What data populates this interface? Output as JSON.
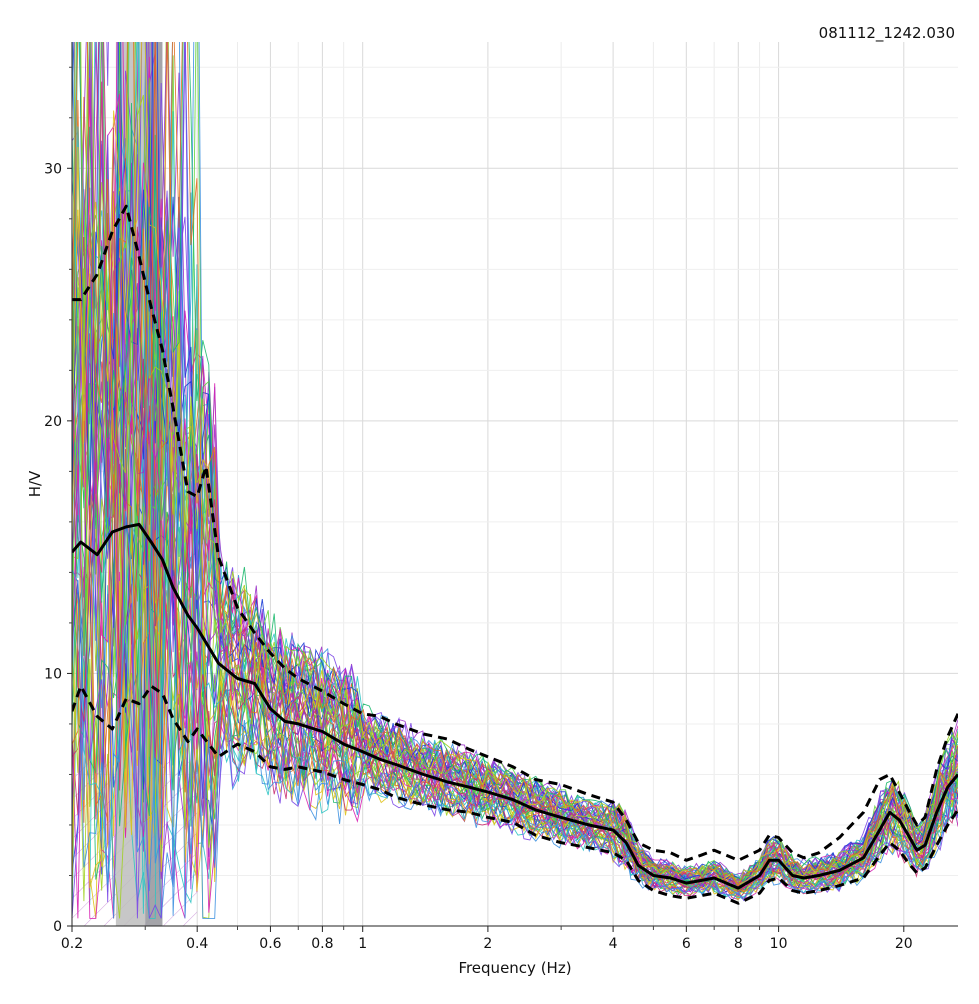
{
  "corner_id": "081112_1242.030",
  "chart_data": {
    "type": "line",
    "title": "",
    "xlabel": "Frequency (Hz)",
    "ylabel": "H/V",
    "xscale": "log",
    "xlim": [
      0.2,
      27
    ],
    "ylim": [
      0,
      35
    ],
    "grid": true,
    "x_tick_labels": [
      {
        "value": 0.2,
        "label": "0.2"
      },
      {
        "value": 0.4,
        "label": "0.4"
      },
      {
        "value": 0.6,
        "label": "0.6"
      },
      {
        "value": 0.8,
        "label": "0.8"
      },
      {
        "value": 1,
        "label": "1"
      },
      {
        "value": 2,
        "label": "2"
      },
      {
        "value": 4,
        "label": "4"
      },
      {
        "value": 6,
        "label": "6"
      },
      {
        "value": 8,
        "label": "8"
      },
      {
        "value": 10,
        "label": "10"
      },
      {
        "value": 20,
        "label": "20"
      }
    ],
    "y_tick_labels": [
      {
        "value": 0,
        "label": "0"
      },
      {
        "value": 10,
        "label": "10"
      },
      {
        "value": 20,
        "label": "20"
      },
      {
        "value": 30,
        "label": "30"
      }
    ],
    "peak_frequency_band": {
      "f0_low": 0.255,
      "f0_high": 0.33,
      "f0": 0.3,
      "shading": "light and dark gray"
    },
    "unreliable_band": {
      "x_range": [
        0.2,
        0.4
      ],
      "y_max": 6.5,
      "style": "hatched"
    },
    "window_curves": {
      "count": 60,
      "colors": [
        "#9b30c8",
        "#2ec4c4",
        "#1a3bd6",
        "#d81fb3",
        "#5fd63c",
        "#e0c21a",
        "#7b46e6",
        "#1ab86b",
        "#c83070",
        "#3c90e0",
        "#a0d020",
        "#e07020"
      ]
    },
    "series": [
      {
        "name": "",
        "role": "mean",
        "style": "solid black",
        "x": [
          0.2,
          0.21,
          0.23,
          0.25,
          0.27,
          0.29,
          0.31,
          0.33,
          0.35,
          0.38,
          0.4,
          0.45,
          0.5,
          0.55,
          0.6,
          0.65,
          0.7,
          0.8,
          0.9,
          1.0,
          1.1,
          1.2,
          1.4,
          1.6,
          1.8,
          2.0,
          2.3,
          2.6,
          3.0,
          3.5,
          4.0,
          4.3,
          4.6,
          5.0,
          5.5,
          6.0,
          6.5,
          7.0,
          8.0,
          9.0,
          9.5,
          10.0,
          10.8,
          11.5,
          12.5,
          14.0,
          16.0,
          17.5,
          18.5,
          19.5,
          20.5,
          21.5,
          22.5,
          24.0,
          25.5,
          27.0
        ],
        "values": [
          14.8,
          15.2,
          14.7,
          15.6,
          15.8,
          15.9,
          15.2,
          14.5,
          13.4,
          12.3,
          11.8,
          10.4,
          9.8,
          9.6,
          8.6,
          8.1,
          8.0,
          7.7,
          7.2,
          6.9,
          6.6,
          6.4,
          6.0,
          5.7,
          5.5,
          5.3,
          5.0,
          4.6,
          4.3,
          4.0,
          3.8,
          3.3,
          2.4,
          2.0,
          1.9,
          1.7,
          1.8,
          1.9,
          1.5,
          2.0,
          2.6,
          2.6,
          2.0,
          1.9,
          2.0,
          2.2,
          2.7,
          3.8,
          4.5,
          4.2,
          3.6,
          3.0,
          3.2,
          4.5,
          5.5,
          6.0
        ]
      },
      {
        "name": "",
        "role": "upper standard deviation",
        "style": "dashed black",
        "x": [
          0.2,
          0.21,
          0.23,
          0.25,
          0.27,
          0.29,
          0.31,
          0.33,
          0.35,
          0.38,
          0.4,
          0.42,
          0.45,
          0.5,
          0.55,
          0.6,
          0.65,
          0.7,
          0.8,
          0.9,
          1.0,
          1.1,
          1.2,
          1.4,
          1.6,
          1.8,
          2.0,
          2.3,
          2.6,
          3.0,
          3.5,
          4.0,
          4.3,
          4.6,
          5.0,
          5.5,
          6.0,
          6.5,
          7.0,
          8.0,
          9.0,
          9.5,
          10.0,
          10.8,
          11.5,
          12.5,
          14.0,
          16.0,
          17.5,
          18.5,
          19.5,
          20.5,
          21.5,
          22.5,
          24.0,
          25.5,
          27.0
        ],
        "values": [
          24.8,
          24.8,
          25.8,
          27.5,
          28.5,
          26.5,
          24.5,
          22.8,
          20.5,
          17.2,
          17.0,
          18.2,
          14.6,
          12.6,
          11.6,
          10.8,
          10.2,
          9.8,
          9.3,
          8.8,
          8.4,
          8.3,
          8.0,
          7.6,
          7.4,
          7.0,
          6.7,
          6.3,
          5.8,
          5.6,
          5.2,
          4.9,
          4.2,
          3.3,
          3.0,
          2.9,
          2.6,
          2.8,
          3.0,
          2.6,
          3.0,
          3.6,
          3.5,
          2.9,
          2.7,
          2.9,
          3.5,
          4.5,
          5.8,
          6.0,
          5.3,
          4.6,
          4.0,
          4.3,
          6.2,
          7.5,
          8.4
        ]
      },
      {
        "name": "",
        "role": "lower standard deviation",
        "style": "dashed black",
        "x": [
          0.2,
          0.21,
          0.23,
          0.25,
          0.27,
          0.29,
          0.31,
          0.33,
          0.35,
          0.38,
          0.4,
          0.45,
          0.5,
          0.55,
          0.6,
          0.65,
          0.7,
          0.8,
          0.9,
          1.0,
          1.1,
          1.2,
          1.4,
          1.6,
          1.8,
          2.0,
          2.3,
          2.6,
          3.0,
          3.5,
          4.0,
          4.3,
          4.6,
          5.0,
          5.5,
          6.0,
          6.5,
          7.0,
          8.0,
          9.0,
          9.5,
          10.0,
          10.8,
          11.5,
          12.5,
          14.0,
          16.0,
          17.5,
          18.5,
          19.5,
          20.5,
          21.5,
          22.5,
          24.0,
          25.5,
          27.0
        ],
        "values": [
          8.5,
          9.5,
          8.3,
          7.8,
          9.0,
          8.8,
          9.5,
          9.2,
          8.2,
          7.3,
          7.8,
          6.7,
          7.2,
          6.9,
          6.3,
          6.2,
          6.3,
          6.1,
          5.8,
          5.6,
          5.4,
          5.1,
          4.8,
          4.6,
          4.5,
          4.3,
          4.1,
          3.6,
          3.3,
          3.1,
          2.9,
          2.6,
          1.8,
          1.4,
          1.2,
          1.1,
          1.2,
          1.3,
          0.9,
          1.3,
          1.8,
          1.9,
          1.4,
          1.3,
          1.4,
          1.6,
          1.9,
          2.8,
          3.3,
          3.0,
          2.5,
          2.1,
          2.3,
          3.2,
          4.0,
          4.6
        ]
      }
    ]
  }
}
